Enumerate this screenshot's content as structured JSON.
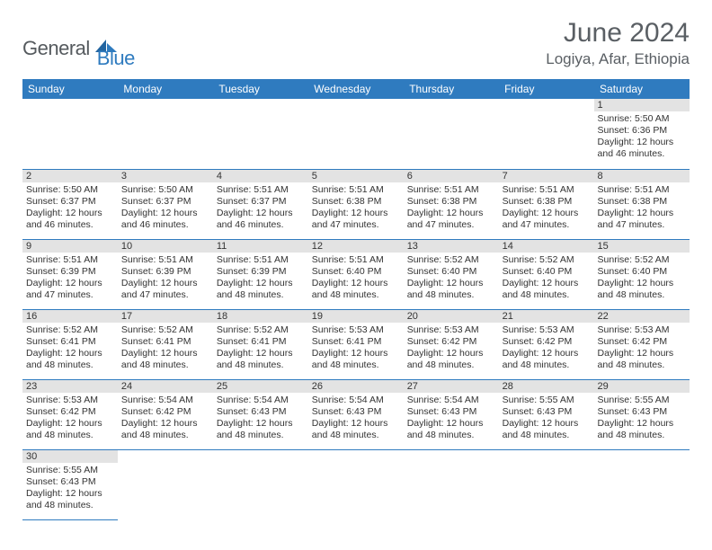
{
  "logo": {
    "part1": "General",
    "part2": "Blue"
  },
  "title": "June 2024",
  "location": "Logiya, Afar, Ethiopia",
  "colors": {
    "header_bg": "#2f7bbf",
    "header_text": "#ffffff",
    "daynum_bg": "#e3e3e3",
    "border": "#2f7bbf",
    "title_color": "#5a5f64",
    "logo_gray": "#555a5e",
    "logo_blue": "#2f7bbf"
  },
  "weekdays": [
    "Sunday",
    "Monday",
    "Tuesday",
    "Wednesday",
    "Thursday",
    "Friday",
    "Saturday"
  ],
  "first_weekday_index": 6,
  "days": [
    {
      "n": 1,
      "sunrise": "5:50 AM",
      "sunset": "6:36 PM",
      "daylight": "12 hours and 46 minutes."
    },
    {
      "n": 2,
      "sunrise": "5:50 AM",
      "sunset": "6:37 PM",
      "daylight": "12 hours and 46 minutes."
    },
    {
      "n": 3,
      "sunrise": "5:50 AM",
      "sunset": "6:37 PM",
      "daylight": "12 hours and 46 minutes."
    },
    {
      "n": 4,
      "sunrise": "5:51 AM",
      "sunset": "6:37 PM",
      "daylight": "12 hours and 46 minutes."
    },
    {
      "n": 5,
      "sunrise": "5:51 AM",
      "sunset": "6:38 PM",
      "daylight": "12 hours and 47 minutes."
    },
    {
      "n": 6,
      "sunrise": "5:51 AM",
      "sunset": "6:38 PM",
      "daylight": "12 hours and 47 minutes."
    },
    {
      "n": 7,
      "sunrise": "5:51 AM",
      "sunset": "6:38 PM",
      "daylight": "12 hours and 47 minutes."
    },
    {
      "n": 8,
      "sunrise": "5:51 AM",
      "sunset": "6:38 PM",
      "daylight": "12 hours and 47 minutes."
    },
    {
      "n": 9,
      "sunrise": "5:51 AM",
      "sunset": "6:39 PM",
      "daylight": "12 hours and 47 minutes."
    },
    {
      "n": 10,
      "sunrise": "5:51 AM",
      "sunset": "6:39 PM",
      "daylight": "12 hours and 47 minutes."
    },
    {
      "n": 11,
      "sunrise": "5:51 AM",
      "sunset": "6:39 PM",
      "daylight": "12 hours and 48 minutes."
    },
    {
      "n": 12,
      "sunrise": "5:51 AM",
      "sunset": "6:40 PM",
      "daylight": "12 hours and 48 minutes."
    },
    {
      "n": 13,
      "sunrise": "5:52 AM",
      "sunset": "6:40 PM",
      "daylight": "12 hours and 48 minutes."
    },
    {
      "n": 14,
      "sunrise": "5:52 AM",
      "sunset": "6:40 PM",
      "daylight": "12 hours and 48 minutes."
    },
    {
      "n": 15,
      "sunrise": "5:52 AM",
      "sunset": "6:40 PM",
      "daylight": "12 hours and 48 minutes."
    },
    {
      "n": 16,
      "sunrise": "5:52 AM",
      "sunset": "6:41 PM",
      "daylight": "12 hours and 48 minutes."
    },
    {
      "n": 17,
      "sunrise": "5:52 AM",
      "sunset": "6:41 PM",
      "daylight": "12 hours and 48 minutes."
    },
    {
      "n": 18,
      "sunrise": "5:52 AM",
      "sunset": "6:41 PM",
      "daylight": "12 hours and 48 minutes."
    },
    {
      "n": 19,
      "sunrise": "5:53 AM",
      "sunset": "6:41 PM",
      "daylight": "12 hours and 48 minutes."
    },
    {
      "n": 20,
      "sunrise": "5:53 AM",
      "sunset": "6:42 PM",
      "daylight": "12 hours and 48 minutes."
    },
    {
      "n": 21,
      "sunrise": "5:53 AM",
      "sunset": "6:42 PM",
      "daylight": "12 hours and 48 minutes."
    },
    {
      "n": 22,
      "sunrise": "5:53 AM",
      "sunset": "6:42 PM",
      "daylight": "12 hours and 48 minutes."
    },
    {
      "n": 23,
      "sunrise": "5:53 AM",
      "sunset": "6:42 PM",
      "daylight": "12 hours and 48 minutes."
    },
    {
      "n": 24,
      "sunrise": "5:54 AM",
      "sunset": "6:42 PM",
      "daylight": "12 hours and 48 minutes."
    },
    {
      "n": 25,
      "sunrise": "5:54 AM",
      "sunset": "6:43 PM",
      "daylight": "12 hours and 48 minutes."
    },
    {
      "n": 26,
      "sunrise": "5:54 AM",
      "sunset": "6:43 PM",
      "daylight": "12 hours and 48 minutes."
    },
    {
      "n": 27,
      "sunrise": "5:54 AM",
      "sunset": "6:43 PM",
      "daylight": "12 hours and 48 minutes."
    },
    {
      "n": 28,
      "sunrise": "5:55 AM",
      "sunset": "6:43 PM",
      "daylight": "12 hours and 48 minutes."
    },
    {
      "n": 29,
      "sunrise": "5:55 AM",
      "sunset": "6:43 PM",
      "daylight": "12 hours and 48 minutes."
    },
    {
      "n": 30,
      "sunrise": "5:55 AM",
      "sunset": "6:43 PM",
      "daylight": "12 hours and 48 minutes."
    }
  ],
  "labels": {
    "sunrise": "Sunrise:",
    "sunset": "Sunset:",
    "daylight": "Daylight:"
  }
}
